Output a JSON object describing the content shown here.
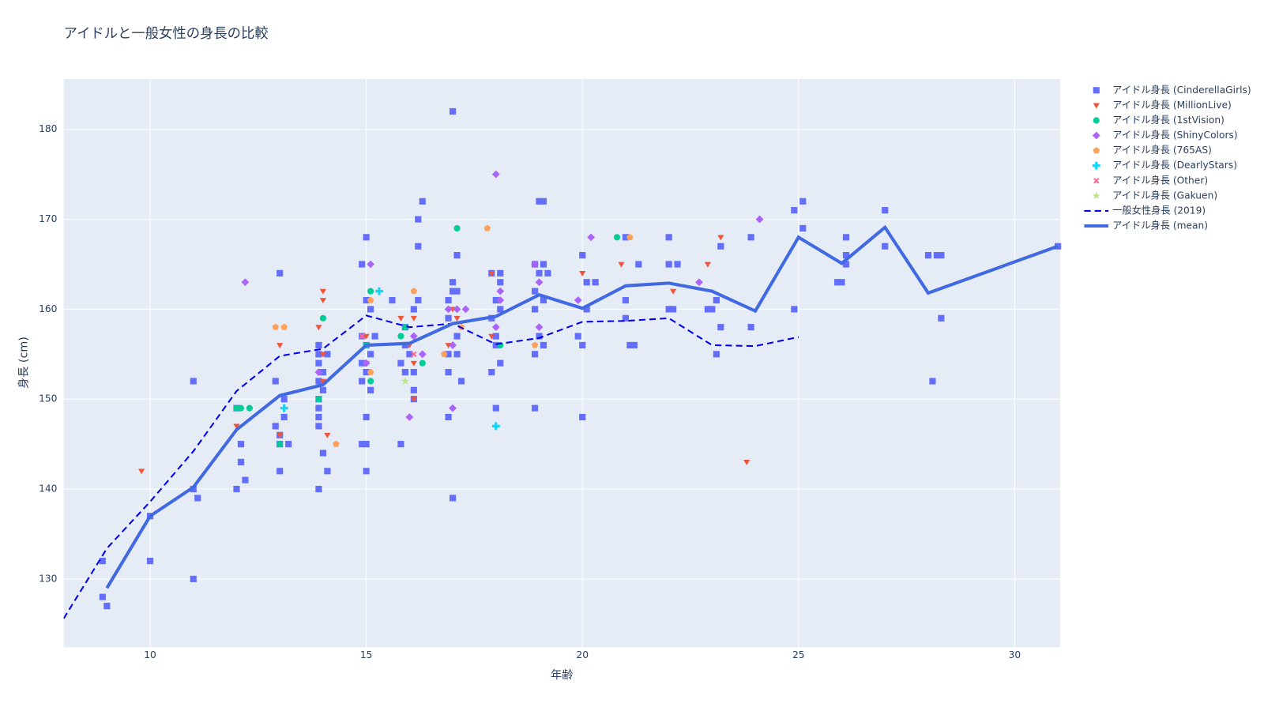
{
  "chart_data": {
    "type": "scatter",
    "title": "アイドルと一般女性の身長の比較",
    "x_label": "年齢",
    "y_label": "身長 (cm)",
    "xlim": [
      8,
      31.05
    ],
    "ylim": [
      122.4,
      185.6
    ],
    "xticks": [
      10,
      15,
      20,
      25,
      30
    ],
    "yticks": [
      130,
      140,
      150,
      160,
      170,
      180
    ],
    "grid": true,
    "legend": "right",
    "series": [
      {
        "name": "アイドル身長 (CinderellaGirls)",
        "color": "#636efa",
        "mode": "markers",
        "symbol": "square",
        "x": [
          8.9,
          8.9,
          9.0,
          10.0,
          10.0,
          11.0,
          11.0,
          11.1,
          11.0,
          12.0,
          12.1,
          12.2,
          12.1,
          12.0,
          13.0,
          12.9,
          12.9,
          13.0,
          13.1,
          13.1,
          13.0,
          13.0,
          13.2,
          13.9,
          13.9,
          13.9,
          14.0,
          13.9,
          14.0,
          13.9,
          13.9,
          13.9,
          13.9,
          14.0,
          14.1,
          13.9,
          14.1,
          15.0,
          14.9,
          15.0,
          14.9,
          15.1,
          15.0,
          15.1,
          14.9,
          15.0,
          14.9,
          15.1,
          15.0,
          14.9,
          15.0,
          15.0,
          15.2,
          15.6,
          15.9,
          15.9,
          15.8,
          16.0,
          15.9,
          16.1,
          16.1,
          15.8,
          16.1,
          16.2,
          16.2,
          16.2,
          16.3,
          16.1,
          16.9,
          16.9,
          17.0,
          17.1,
          17.0,
          16.9,
          17.1,
          17.1,
          16.9,
          17.2,
          16.9,
          17.0,
          17.0,
          17.1,
          17.9,
          17.9,
          18.0,
          18.0,
          17.9,
          18.1,
          18.1,
          18.1,
          18.0,
          18.1,
          18.0,
          19.0,
          19.1,
          18.9,
          19.0,
          19.1,
          19.2,
          18.9,
          19.1,
          18.9,
          19.0,
          19.1,
          18.9,
          18.9,
          20.0,
          20.1,
          20.3,
          20.1,
          19.9,
          20.0,
          20.0,
          21.0,
          21.0,
          21.0,
          21.1,
          21.2,
          21.3,
          22.0,
          22.0,
          22.2,
          22.0,
          22.1,
          23.0,
          22.9,
          23.1,
          23.2,
          23.1,
          23.2,
          23.9,
          23.9,
          24.9,
          24.9,
          25.1,
          25.1,
          25.9,
          26.0,
          26.1,
          26.1,
          26.1,
          27.0,
          27.0,
          28.0,
          28.2,
          28.3,
          28.1,
          28.3,
          31.0
        ],
        "values": [
          132,
          128,
          127,
          137,
          132,
          152,
          140,
          139,
          130,
          149,
          145,
          141,
          143,
          140,
          164,
          152,
          147,
          146,
          150,
          148,
          145,
          142,
          145,
          156,
          155,
          154,
          153,
          152,
          151,
          150,
          149,
          148,
          147,
          144,
          142,
          140,
          155,
          168,
          165,
          161,
          157,
          160,
          156,
          155,
          154,
          153,
          152,
          151,
          148,
          145,
          145,
          142,
          157,
          161,
          158,
          156,
          154,
          155,
          153,
          151,
          150,
          145,
          160,
          161,
          167,
          170,
          172,
          153,
          161,
          159,
          162,
          166,
          163,
          155,
          157,
          155,
          153,
          152,
          148,
          139,
          182,
          162,
          164,
          159,
          161,
          157,
          153,
          164,
          163,
          160,
          156,
          154,
          149,
          172,
          172,
          165,
          164,
          165,
          164,
          162,
          161,
          160,
          157,
          156,
          155,
          149,
          166,
          163,
          163,
          160,
          157,
          156,
          148,
          168,
          161,
          159,
          156,
          156,
          165,
          168,
          165,
          165,
          160,
          160,
          160,
          160,
          161,
          158,
          155,
          167,
          168,
          158,
          171,
          160,
          172,
          169,
          163,
          163,
          166,
          168,
          165,
          171,
          167,
          166,
          166,
          166,
          152,
          159,
          167
        ]
      },
      {
        "name": "アイドル身長 (MillionLive)",
        "color": "#EF553B",
        "mode": "markers",
        "symbol": "triangle-down",
        "x": [
          9.8,
          12.0,
          13.0,
          13.0,
          13.9,
          14.0,
          14.0,
          14.0,
          14.1,
          14.0,
          15.0,
          15.0,
          15.8,
          16.1,
          16.0,
          16.1,
          16.1,
          17.0,
          17.1,
          16.9,
          17.9,
          17.9,
          20.0,
          20.9,
          22.1,
          22.9,
          23.2,
          23.8
        ],
        "values": [
          142,
          147,
          156,
          146,
          158,
          162,
          161,
          155,
          146,
          152,
          157,
          154,
          159,
          159,
          156,
          150,
          154,
          160,
          159,
          156,
          164,
          157,
          164,
          165,
          162,
          165,
          168,
          143
        ]
      },
      {
        "name": "アイドル身長 (1stVision)",
        "color": "#00cc96",
        "mode": "markers",
        "symbol": "circle",
        "x": [
          12.0,
          12.1,
          12.3,
          13.0,
          13.9,
          14.0,
          15.1,
          15.1,
          15.0,
          15.8,
          15.9,
          16.3,
          17.1,
          18.1,
          20.8
        ],
        "values": [
          149,
          149,
          149,
          145,
          150,
          159,
          162,
          152,
          156,
          157,
          158,
          154,
          169,
          156,
          168
        ]
      },
      {
        "name": "アイドル身長 (ShinyColors)",
        "color": "#ab63fa",
        "mode": "markers",
        "symbol": "diamond",
        "x": [
          12.2,
          13.9,
          15.0,
          15.1,
          16.0,
          16.1,
          16.3,
          16.9,
          17.0,
          17.1,
          17.3,
          17.0,
          18.0,
          18.0,
          18.1,
          18.1,
          18.9,
          19.0,
          19.0,
          19.9,
          20.2,
          22.7,
          24.1
        ],
        "values": [
          163,
          153,
          154,
          165,
          148,
          157,
          155,
          160,
          149,
          160,
          160,
          156,
          175,
          158,
          162,
          161,
          165,
          163,
          158,
          161,
          168,
          163,
          170
        ]
      },
      {
        "name": "アイドル身長 (765AS)",
        "color": "#FFA15A",
        "mode": "markers",
        "symbol": "pentagon",
        "x": [
          12.9,
          13.1,
          14.3,
          15.1,
          15.1,
          16.1,
          16.8,
          17.2,
          17.8,
          18.9,
          21.1
        ],
        "values": [
          158,
          158,
          145,
          161,
          153,
          162,
          155,
          158,
          169,
          156,
          168
        ]
      },
      {
        "name": "アイドル身長 (DearlyStars)",
        "color": "#19d3f3",
        "mode": "markers",
        "symbol": "cross",
        "x": [
          13.1,
          15.3,
          18.0
        ],
        "values": [
          149,
          162,
          147
        ]
      },
      {
        "name": "アイドル身長 (Other)",
        "color": "#FF6692",
        "mode": "markers",
        "symbol": "x",
        "x": [
          14.9,
          16.1
        ],
        "values": [
          157,
          155
        ]
      },
      {
        "name": "アイドル身長 (Gakuen)",
        "color": "#B6E880",
        "mode": "markers",
        "symbol": "star",
        "x": [
          15.9
        ],
        "values": [
          152
        ]
      },
      {
        "name": "一般女性身長 (2019)",
        "color": "#0000ee",
        "mode": "lines",
        "dash": true,
        "width": 2,
        "x": [
          8,
          9,
          10,
          11,
          12,
          13,
          14,
          15,
          16,
          17,
          18,
          19,
          20,
          21,
          22,
          23,
          24,
          25
        ],
        "values": [
          125.6,
          133.4,
          138.6,
          144.2,
          150.9,
          154.8,
          155.6,
          159.3,
          158.0,
          158.4,
          156.1,
          156.8,
          158.6,
          158.7,
          159.0,
          156.0,
          155.9,
          156.9
        ]
      },
      {
        "name": "アイドル身長 (mean)",
        "color": "#4169e1",
        "mode": "lines",
        "dash": false,
        "width": 4,
        "x": [
          9,
          10,
          11,
          12,
          13,
          14,
          15,
          16,
          17,
          18,
          19,
          20,
          21,
          22,
          23,
          24,
          25,
          26,
          27,
          28,
          31
        ],
        "values": [
          129.0,
          137.0,
          140.2,
          146.6,
          150.4,
          151.6,
          156.0,
          156.2,
          158.4,
          159.2,
          161.6,
          160.1,
          162.6,
          162.9,
          162.0,
          159.8,
          168.0,
          165.1,
          169.1,
          161.8,
          167.0
        ]
      }
    ]
  }
}
